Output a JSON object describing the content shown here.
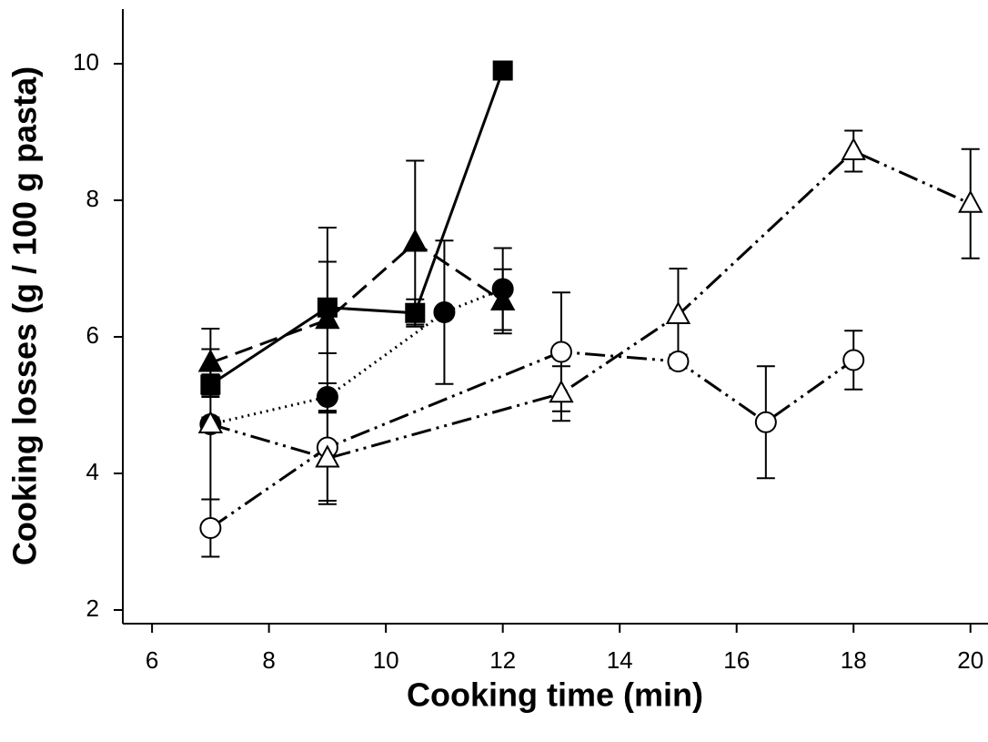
{
  "chart_data": {
    "type": "line",
    "xlabel": "Cooking time (min)",
    "ylabel": "Cooking losses (g / 100 g pasta)",
    "xlim": [
      5.5,
      20.3
    ],
    "xticks": [
      6,
      8,
      10,
      12,
      14,
      16,
      18,
      20
    ],
    "ylim": [
      1.8,
      10.8
    ],
    "yticks": [
      2,
      4,
      6,
      8,
      10
    ],
    "series": [
      {
        "color": "#000000",
        "marker": "square",
        "filled": true,
        "linestyle": "solid",
        "x": [
          7,
          9,
          10.5,
          12
        ],
        "values": [
          5.3,
          6.43,
          6.35,
          9.9
        ],
        "errors": [
          0.15,
          0.67,
          0.2,
          0.1
        ]
      },
      {
        "color": "#000000",
        "marker": "triangle",
        "filled": true,
        "linestyle": "dashed",
        "x": [
          7,
          9,
          10.5,
          12
        ],
        "values": [
          5.62,
          6.25,
          7.38,
          6.52
        ],
        "errors": [
          0.5,
          1.35,
          1.2,
          0.47
        ]
      },
      {
        "color": "#000000",
        "marker": "circle",
        "filled": true,
        "linestyle": "dotted",
        "x": [
          7,
          9,
          11,
          12
        ],
        "values": [
          4.72,
          5.12,
          6.36,
          6.7
        ],
        "errors": [
          1.1,
          0.2,
          1.05,
          0.6
        ]
      },
      {
        "color": "#000000",
        "marker": "circle",
        "filled": false,
        "linestyle": "dashdotdot",
        "x": [
          7,
          9,
          13,
          15,
          16.5,
          18
        ],
        "values": [
          3.2,
          4.38,
          5.78,
          5.64,
          4.75,
          5.66
        ],
        "errors": [
          0.42,
          0.78,
          0.87,
          0.1,
          0.82,
          0.43
        ]
      },
      {
        "color": "#000000",
        "marker": "triangle",
        "filled": false,
        "linestyle": "dashdotdot",
        "x": [
          7,
          9,
          13,
          15,
          18,
          20
        ],
        "values": [
          4.72,
          4.22,
          5.17,
          6.32,
          8.72,
          7.95
        ],
        "errors": [
          0.1,
          0.67,
          0.4,
          0.68,
          0.3,
          0.8
        ]
      }
    ]
  }
}
